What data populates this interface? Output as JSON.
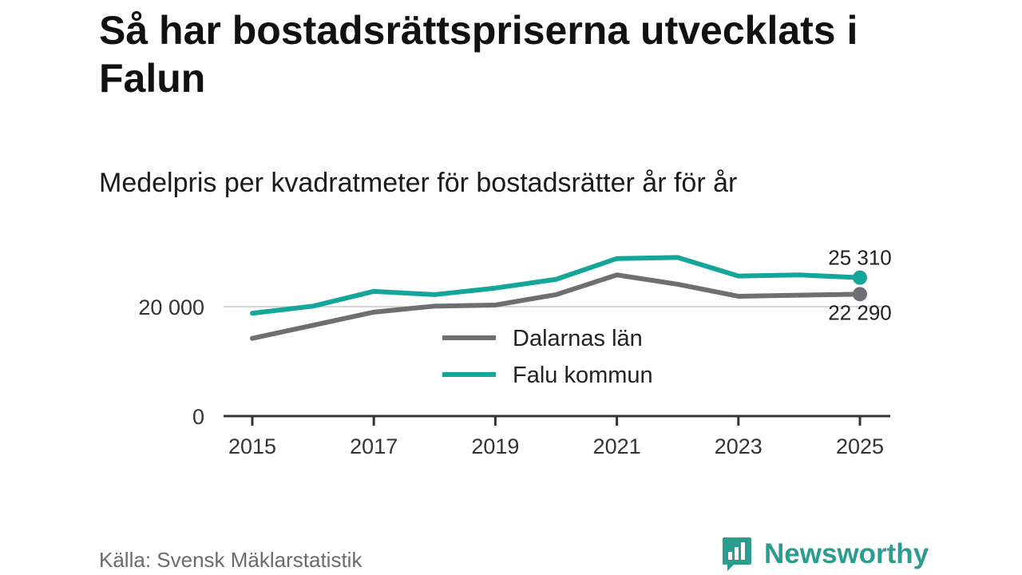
{
  "title": "Så har bostadsrättspriserna utvecklats i Falun",
  "subtitle": "Medelpris per kvadratmeter för bostadsrätter år för år",
  "source": "Källa: Svensk Mäklarstatistik",
  "brand": {
    "name": "Newsworthy",
    "icon": "bar-chart-speech-bubble-icon",
    "color": "#2a9d8f"
  },
  "chart_data": {
    "type": "line",
    "x": [
      2015,
      2016,
      2017,
      2018,
      2019,
      2020,
      2021,
      2022,
      2023,
      2024,
      2025
    ],
    "series": [
      {
        "name": "Dalarnas län",
        "color": "#6f6e73",
        "values": [
          14200,
          16600,
          19000,
          20100,
          20300,
          22200,
          25800,
          24100,
          21900,
          22100,
          22290
        ],
        "end_label": "22 290"
      },
      {
        "name": "Falu kommun",
        "color": "#14a69b",
        "values": [
          18800,
          20100,
          22800,
          22200,
          23400,
          25000,
          28800,
          29000,
          25600,
          25800,
          25310
        ],
        "end_label": "25 310"
      }
    ],
    "y_ticks": [
      0,
      20000
    ],
    "y_tick_labels": [
      "0",
      "20 000"
    ],
    "x_ticks": [
      2015,
      2017,
      2019,
      2021,
      2023,
      2025
    ],
    "x_tick_labels": [
      "2015",
      "2017",
      "2019",
      "2021",
      "2023",
      "2025"
    ],
    "ylim": [
      0,
      30000
    ],
    "grid": true,
    "legend_position": "center"
  }
}
